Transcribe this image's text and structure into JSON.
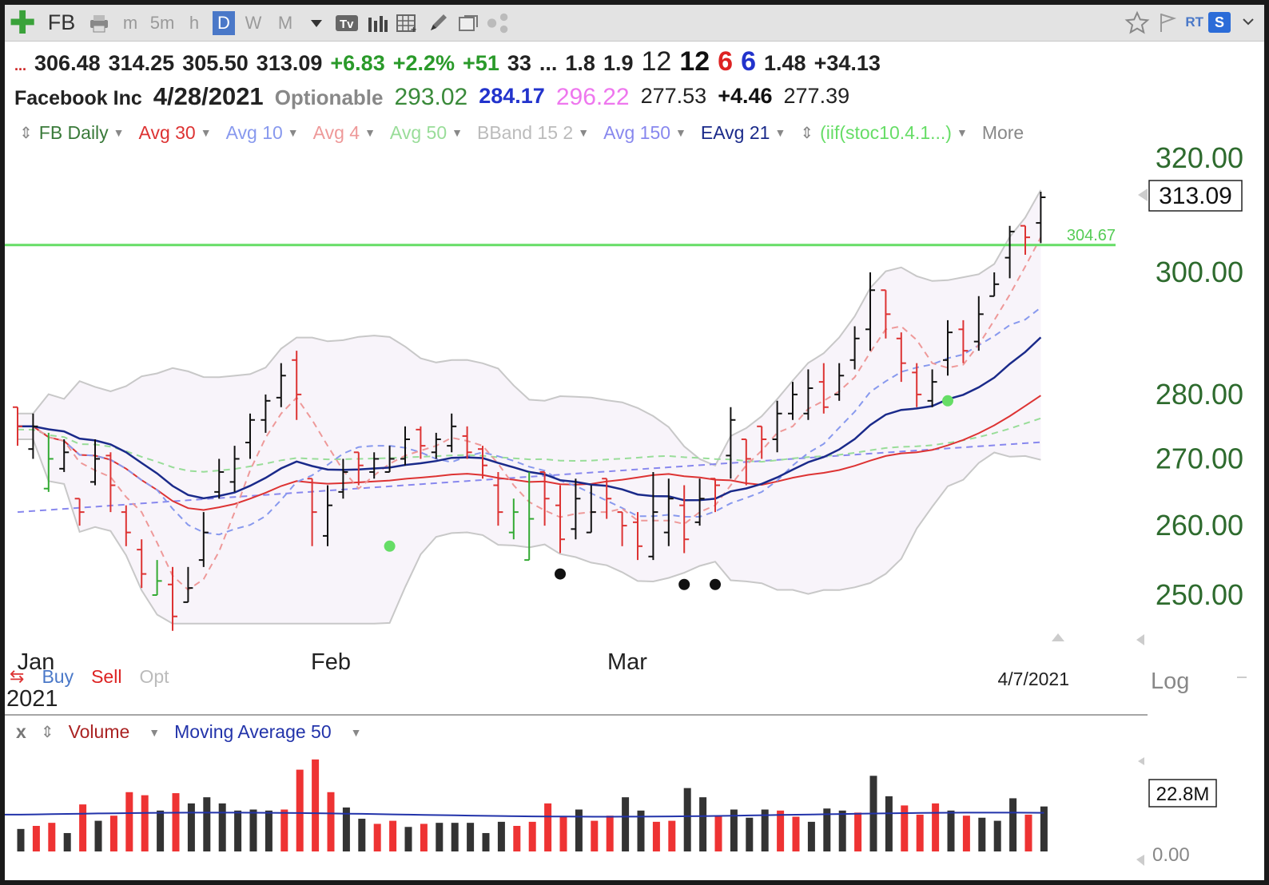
{
  "toolbar": {
    "symbol": "FB",
    "periods": [
      "m",
      "5m",
      "h",
      "D",
      "W",
      "M"
    ],
    "active_period": "D",
    "icons": [
      "add-symbol-icon",
      "print-icon",
      "dropdown-icon",
      "text-tool-icon",
      "bar-style-icon",
      "grid-icon",
      "draw-pencil-icon",
      "attach-icon",
      "share-icon",
      "star-icon",
      "flag-icon",
      "rt-label",
      "s-badge-icon"
    ],
    "rt_label": "RT",
    "s_label": "S"
  },
  "quote": {
    "line1": [
      {
        "text": "...",
        "color": "#cc2222"
      },
      {
        "text": "306.48",
        "color": "#222222"
      },
      {
        "text": "314.25",
        "color": "#222222"
      },
      {
        "text": "305.50",
        "color": "#222222"
      },
      {
        "text": "313.09",
        "color": "#222222"
      },
      {
        "text": "+6.83",
        "color": "#2a9a2a"
      },
      {
        "text": "+2.2%",
        "color": "#2a9a2a"
      },
      {
        "text": "+51",
        "color": "#2a9a2a"
      },
      {
        "text": "33",
        "color": "#222222"
      },
      {
        "text": "...",
        "color": "#222222"
      },
      {
        "text": "1.8",
        "color": "#222222"
      },
      {
        "text": "1.9",
        "color": "#222222"
      },
      {
        "text": "12",
        "color": "#222222"
      },
      {
        "text": "12",
        "color": "#111111"
      },
      {
        "text": "6",
        "color": "#dd2222"
      },
      {
        "text": "6",
        "color": "#2233cc"
      },
      {
        "text": "1.48",
        "color": "#222222"
      },
      {
        "text": "+34.13",
        "color": "#222222"
      }
    ],
    "company": "Facebook Inc",
    "date": "4/28/2021",
    "optionable": "Optionable",
    "line2_values": [
      {
        "text": "293.02",
        "color": "#3a8a3a"
      },
      {
        "text": "284.17",
        "color": "#2233cc"
      },
      {
        "text": "296.22",
        "color": "#ee77ee"
      },
      {
        "text": "277.53",
        "color": "#222222"
      },
      {
        "text": "+4.46",
        "color": "#111111"
      },
      {
        "text": "277.39",
        "color": "#222222"
      }
    ]
  },
  "legend": [
    {
      "label": "FB Daily",
      "color": "#3a7a3a"
    },
    {
      "label": "Avg 30",
      "color": "#dd3333"
    },
    {
      "label": "Avg 10",
      "color": "#8899ee"
    },
    {
      "label": "Avg 4",
      "color": "#ee9999"
    },
    {
      "label": "Avg 50",
      "color": "#99dd99"
    },
    {
      "label": "BBand 15 2",
      "color": "#bbbbbb"
    },
    {
      "label": "Avg 150",
      "color": "#8888ee"
    },
    {
      "label": "EAvg 21",
      "color": "#1a2a8a"
    },
    {
      "label": "(iif(stoc10.4.1...)",
      "color": "#66dd66"
    },
    {
      "label": "More",
      "color": "#888888"
    }
  ],
  "chart_data": {
    "type": "bar",
    "title": "FB Daily",
    "scale": "log",
    "y_ticks": [
      "320.00",
      "300.00",
      "280.00",
      "270.00",
      "260.00",
      "250.00"
    ],
    "last_price": "313.09",
    "hline": {
      "value": 304.67,
      "label": "304.67",
      "color": "#66dd66"
    },
    "x_labels": [
      "Jan",
      "Feb",
      "Mar"
    ],
    "year_label": "2021",
    "date_label": "4/7/2021",
    "log_label": "Log",
    "bars": [
      {
        "h": 278,
        "l": 272,
        "c": 275,
        "col": "red"
      },
      {
        "h": 277,
        "l": 270,
        "c": 275,
        "col": "black"
      },
      {
        "h": 274,
        "l": 265,
        "c": 270,
        "col": "green"
      },
      {
        "h": 273,
        "l": 268,
        "c": 271,
        "col": "black"
      },
      {
        "h": 264,
        "l": 260,
        "c": 262,
        "col": "red"
      },
      {
        "h": 273,
        "l": 266,
        "c": 270,
        "col": "black"
      },
      {
        "h": 271,
        "l": 262,
        "c": 266,
        "col": "red"
      },
      {
        "h": 263,
        "l": 257,
        "c": 259,
        "col": "red"
      },
      {
        "h": 258,
        "l": 251,
        "c": 253,
        "col": "red"
      },
      {
        "h": 255,
        "l": 250,
        "c": 252,
        "col": "green"
      },
      {
        "h": 254,
        "l": 245,
        "c": 247,
        "col": "red"
      },
      {
        "h": 254,
        "l": 249,
        "c": 251,
        "col": "black"
      },
      {
        "h": 262,
        "l": 254,
        "c": 259,
        "col": "black"
      },
      {
        "h": 270,
        "l": 264,
        "c": 268,
        "col": "black"
      },
      {
        "h": 272,
        "l": 265,
        "c": 270,
        "col": "black"
      },
      {
        "h": 277,
        "l": 270,
        "c": 276,
        "col": "black"
      },
      {
        "h": 280,
        "l": 274,
        "c": 279,
        "col": "black"
      },
      {
        "h": 285,
        "l": 278,
        "c": 283,
        "col": "black"
      },
      {
        "h": 287,
        "l": 276,
        "c": 280,
        "col": "red"
      },
      {
        "h": 267,
        "l": 257,
        "c": 262,
        "col": "red"
      },
      {
        "h": 266,
        "l": 257,
        "c": 263,
        "col": "black"
      },
      {
        "h": 270,
        "l": 264,
        "c": 268,
        "col": "black"
      },
      {
        "h": 271,
        "l": 266,
        "c": 269,
        "col": "red"
      },
      {
        "h": 271,
        "l": 267,
        "c": 270,
        "col": "black"
      },
      {
        "h": 272,
        "l": 268,
        "c": 270,
        "col": "black"
      },
      {
        "h": 275,
        "l": 269,
        "c": 273,
        "col": "black"
      },
      {
        "h": 275,
        "l": 270,
        "c": 272,
        "col": "red"
      },
      {
        "h": 274,
        "l": 270,
        "c": 273,
        "col": "black"
      },
      {
        "h": 277,
        "l": 271,
        "c": 275,
        "col": "black"
      },
      {
        "h": 275,
        "l": 270,
        "c": 271,
        "col": "red"
      },
      {
        "h": 272,
        "l": 267,
        "c": 269,
        "col": "red"
      },
      {
        "h": 268,
        "l": 260,
        "c": 262,
        "col": "red"
      },
      {
        "h": 264,
        "l": 258,
        "c": 262,
        "col": "green"
      },
      {
        "h": 268,
        "l": 255,
        "c": 261,
        "col": "green"
      },
      {
        "h": 268,
        "l": 260,
        "c": 264,
        "col": "red"
      },
      {
        "h": 266,
        "l": 256,
        "c": 258,
        "col": "red"
      },
      {
        "h": 267,
        "l": 258,
        "c": 264,
        "col": "black"
      },
      {
        "h": 266,
        "l": 259,
        "c": 262,
        "col": "black"
      },
      {
        "h": 267,
        "l": 261,
        "c": 264,
        "col": "red"
      },
      {
        "h": 262,
        "l": 257,
        "c": 260,
        "col": "red"
      },
      {
        "h": 262,
        "l": 255,
        "c": 257,
        "col": "red"
      },
      {
        "h": 268,
        "l": 255,
        "c": 262,
        "col": "black"
      },
      {
        "h": 267,
        "l": 257,
        "c": 264,
        "col": "black"
      },
      {
        "h": 266,
        "l": 256,
        "c": 258,
        "col": "red"
      },
      {
        "h": 267,
        "l": 260,
        "c": 264,
        "col": "black"
      },
      {
        "h": 267,
        "l": 262,
        "c": 266,
        "col": "red"
      },
      {
        "h": 278,
        "l": 267,
        "c": 276,
        "col": "black"
      },
      {
        "h": 273,
        "l": 266,
        "c": 270,
        "col": "red"
      },
      {
        "h": 275,
        "l": 270,
        "c": 273,
        "col": "red"
      },
      {
        "h": 279,
        "l": 271,
        "c": 277,
        "col": "black"
      },
      {
        "h": 282,
        "l": 276,
        "c": 280,
        "col": "black"
      },
      {
        "h": 284,
        "l": 276,
        "c": 281,
        "col": "black"
      },
      {
        "h": 285,
        "l": 277,
        "c": 278,
        "col": "red"
      },
      {
        "h": 285,
        "l": 279,
        "c": 283,
        "col": "black"
      },
      {
        "h": 291,
        "l": 284,
        "c": 289,
        "col": "black"
      },
      {
        "h": 300,
        "l": 287,
        "c": 297,
        "col": "black"
      },
      {
        "h": 297,
        "l": 289,
        "c": 293,
        "col": "red"
      },
      {
        "h": 290,
        "l": 282,
        "c": 285,
        "col": "red"
      },
      {
        "h": 285,
        "l": 278,
        "c": 280,
        "col": "red"
      },
      {
        "h": 284,
        "l": 278,
        "c": 282,
        "col": "black"
      },
      {
        "h": 292,
        "l": 283,
        "c": 290,
        "col": "black"
      },
      {
        "h": 292,
        "l": 285,
        "c": 287,
        "col": "red"
      },
      {
        "h": 296,
        "l": 287,
        "c": 293,
        "col": "black"
      },
      {
        "h": 300,
        "l": 296,
        "c": 298,
        "col": "black"
      },
      {
        "h": 308,
        "l": 299,
        "c": 307,
        "col": "black"
      },
      {
        "h": 308,
        "l": 303,
        "c": 306,
        "col": "red"
      },
      {
        "h": 314,
        "l": 305,
        "c": 313,
        "col": "black"
      }
    ],
    "dots": [
      {
        "i": 24,
        "y": 257,
        "color": "#66dd66"
      },
      {
        "i": 35,
        "y": 253,
        "color": "#111111"
      },
      {
        "i": 43,
        "y": 251.5,
        "color": "#111111"
      },
      {
        "i": 45,
        "y": 251.5,
        "color": "#111111"
      },
      {
        "i": 60,
        "y": 279,
        "color": "#66dd66"
      }
    ],
    "volume": {
      "label": "Volume",
      "ma_label": "Moving Average 50",
      "close_label": "x",
      "last": "22.8M",
      "zero_label": "0.00",
      "ma_value": 0.36,
      "values": [
        {
          "v": 0.22,
          "col": "black"
        },
        {
          "v": 0.25,
          "col": "red"
        },
        {
          "v": 0.28,
          "col": "red"
        },
        {
          "v": 0.18,
          "col": "black"
        },
        {
          "v": 0.46,
          "col": "red"
        },
        {
          "v": 0.3,
          "col": "black"
        },
        {
          "v": 0.35,
          "col": "red"
        },
        {
          "v": 0.58,
          "col": "red"
        },
        {
          "v": 0.55,
          "col": "red"
        },
        {
          "v": 0.4,
          "col": "black"
        },
        {
          "v": 0.57,
          "col": "red"
        },
        {
          "v": 0.47,
          "col": "black"
        },
        {
          "v": 0.53,
          "col": "black"
        },
        {
          "v": 0.47,
          "col": "black"
        },
        {
          "v": 0.4,
          "col": "black"
        },
        {
          "v": 0.41,
          "col": "black"
        },
        {
          "v": 0.4,
          "col": "black"
        },
        {
          "v": 0.41,
          "col": "red"
        },
        {
          "v": 0.8,
          "col": "red"
        },
        {
          "v": 0.9,
          "col": "red"
        },
        {
          "v": 0.58,
          "col": "red"
        },
        {
          "v": 0.43,
          "col": "black"
        },
        {
          "v": 0.32,
          "col": "black"
        },
        {
          "v": 0.27,
          "col": "red"
        },
        {
          "v": 0.3,
          "col": "red"
        },
        {
          "v": 0.24,
          "col": "black"
        },
        {
          "v": 0.27,
          "col": "red"
        },
        {
          "v": 0.28,
          "col": "black"
        },
        {
          "v": 0.28,
          "col": "black"
        },
        {
          "v": 0.28,
          "col": "black"
        },
        {
          "v": 0.18,
          "col": "black"
        },
        {
          "v": 0.29,
          "col": "black"
        },
        {
          "v": 0.25,
          "col": "red"
        },
        {
          "v": 0.29,
          "col": "red"
        },
        {
          "v": 0.47,
          "col": "red"
        },
        {
          "v": 0.34,
          "col": "red"
        },
        {
          "v": 0.41,
          "col": "black"
        },
        {
          "v": 0.3,
          "col": "red"
        },
        {
          "v": 0.35,
          "col": "red"
        },
        {
          "v": 0.53,
          "col": "black"
        },
        {
          "v": 0.4,
          "col": "black"
        },
        {
          "v": 0.29,
          "col": "red"
        },
        {
          "v": 0.3,
          "col": "red"
        },
        {
          "v": 0.62,
          "col": "black"
        },
        {
          "v": 0.53,
          "col": "black"
        },
        {
          "v": 0.35,
          "col": "red"
        },
        {
          "v": 0.41,
          "col": "black"
        },
        {
          "v": 0.33,
          "col": "black"
        },
        {
          "v": 0.41,
          "col": "black"
        },
        {
          "v": 0.4,
          "col": "red"
        },
        {
          "v": 0.34,
          "col": "red"
        },
        {
          "v": 0.29,
          "col": "black"
        },
        {
          "v": 0.42,
          "col": "black"
        },
        {
          "v": 0.4,
          "col": "black"
        },
        {
          "v": 0.38,
          "col": "red"
        },
        {
          "v": 0.74,
          "col": "black"
        },
        {
          "v": 0.54,
          "col": "black"
        },
        {
          "v": 0.45,
          "col": "red"
        },
        {
          "v": 0.36,
          "col": "red"
        },
        {
          "v": 0.47,
          "col": "red"
        },
        {
          "v": 0.4,
          "col": "black"
        },
        {
          "v": 0.35,
          "col": "red"
        },
        {
          "v": 0.33,
          "col": "black"
        },
        {
          "v": 0.3,
          "col": "black"
        },
        {
          "v": 0.52,
          "col": "black"
        },
        {
          "v": 0.36,
          "col": "red"
        },
        {
          "v": 0.44,
          "col": "black"
        }
      ]
    }
  },
  "signals": {
    "buy": "Buy",
    "sell": "Sell",
    "opt": "Opt"
  }
}
